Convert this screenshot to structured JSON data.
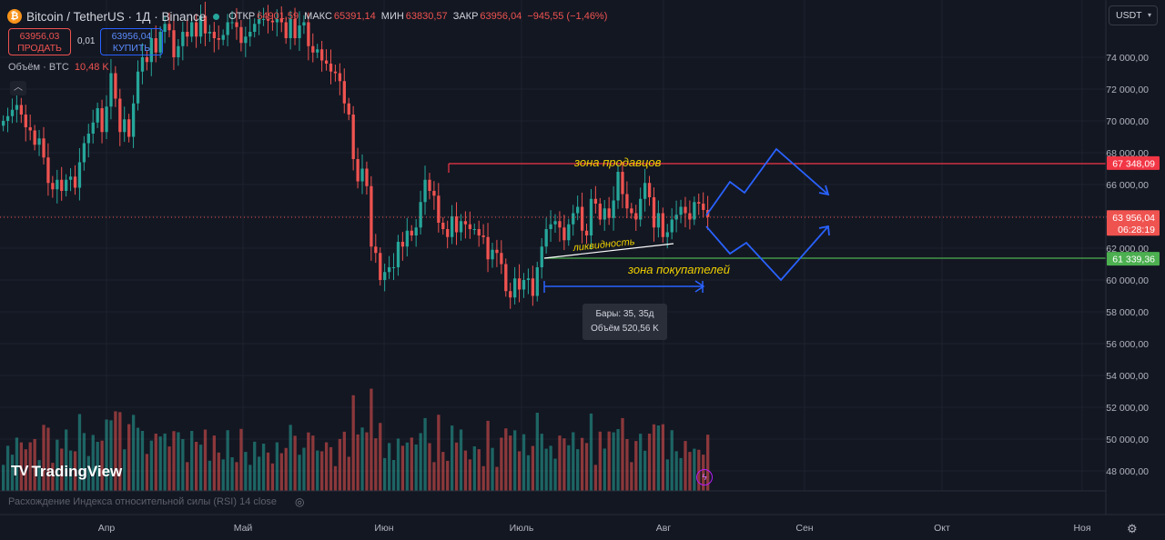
{
  "header": {
    "symbol": "Bitcoin / TetherUS · 1Д · Binance",
    "coin_glyph": "₿",
    "ohlc": [
      {
        "label": "ОТКР",
        "value": "64901,59"
      },
      {
        "label": "МАКС",
        "value": "65391,14"
      },
      {
        "label": "МИН",
        "value": "63830,57"
      },
      {
        "label": "ЗАКР",
        "value": "63956,04"
      }
    ],
    "change": "−945,55 (−1,46%)"
  },
  "trade": {
    "sell_price": "63956,03",
    "sell_label": "ПРОДАТЬ",
    "spread": "0,01",
    "buy_price": "63956,04",
    "buy_label": "КУПИТЬ"
  },
  "volume_legend": {
    "label": "Объём · BTC",
    "value": "10,48 K"
  },
  "collapse_glyph": "︿",
  "currency_selector": {
    "label": "USDT",
    "arrow": "▾"
  },
  "logo": {
    "mark": "TV",
    "text": "TradingView"
  },
  "rsi_label": "Расхождение Индекса относительной силы (RSI) 14 close",
  "eye_glyph": "◎",
  "gear_glyph": "⚙",
  "bolt_glyph": "ϟ",
  "tooltip": {
    "line1": "Бары: 35, 35д",
    "line2": "Объём 520,56 K"
  },
  "colors": {
    "up": "#26a69a",
    "down": "#ef5350",
    "drawing": "#2962ff",
    "annotation": "#f0d000",
    "resistance": "#f23645",
    "support": "#4caf50",
    "background": "#131722"
  },
  "chart_data": {
    "type": "candlestick",
    "symbol": "BTCUSDT",
    "interval": "1D",
    "ylim": [
      47000,
      76000
    ],
    "y_ticks": [
      "48000,00",
      "50000,00",
      "52000,00",
      "54000,00",
      "56000,00",
      "58000,00",
      "60000,00",
      "62000,00",
      "64000,00",
      "66000,00",
      "68000,00",
      "70000,00",
      "72000,00",
      "74000,00"
    ],
    "x_ticks": [
      "Апр",
      "Май",
      "Июн",
      "Июль",
      "Авг",
      "Сен",
      "Окт",
      "Ноя"
    ],
    "price_tags": [
      {
        "name": "resistance",
        "value": "67348,09",
        "price": 67348
      },
      {
        "name": "current",
        "value": "63956,04",
        "sub": "06:28:19",
        "price": 63956
      },
      {
        "name": "support",
        "value": "61339,36",
        "price": 61339
      }
    ],
    "annotations": {
      "sellers_zone": "зона продавцов",
      "buyers_zone": "зона покупателей",
      "liquidity": "ликвидность"
    },
    "close": [
      70000,
      70300,
      70700,
      71000,
      70400,
      69600,
      69400,
      68500,
      68900,
      67700,
      66100,
      65700,
      66300,
      65600,
      66300,
      66500,
      65800,
      67400,
      68600,
      69200,
      69900,
      70800,
      69300,
      70900,
      73000,
      71400,
      69300,
      70100,
      69000,
      71100,
      73100,
      74000,
      73700,
      75200,
      74300,
      75600,
      76100,
      75700,
      74000,
      74700,
      75600,
      75300,
      76200,
      75300,
      76600,
      75500,
      75600,
      75200,
      75100,
      75400,
      76200,
      76200,
      75900,
      74900,
      75300,
      75600,
      76100,
      76400,
      76400,
      76300,
      76200,
      76400,
      76200,
      75200,
      76400,
      75200,
      76000,
      76200,
      74700,
      74300,
      74500,
      73800,
      73600,
      73100,
      73000,
      72500,
      71100,
      70400,
      67600,
      66200,
      67000,
      65900,
      62100,
      61700,
      60000,
      60500,
      60800,
      60800,
      62400,
      62100,
      63100,
      62800,
      63300,
      64900,
      66300,
      65600,
      65300,
      63600,
      63200,
      62700,
      64000,
      63000,
      63700,
      63500,
      63200,
      63200,
      62800,
      62700,
      61300,
      61900,
      61700,
      61000,
      59300,
      58900,
      60100,
      59400,
      60000,
      60100,
      59000,
      60800,
      62100,
      63200,
      63500,
      63700,
      63300,
      62500,
      63500,
      64200,
      64600,
      63100,
      62800,
      65100,
      64800,
      63800,
      64500,
      63900,
      65000,
      66800,
      65400,
      64500,
      64200,
      63800,
      65100,
      66100,
      65200,
      63300,
      64200,
      62700,
      63000,
      63800,
      64100,
      64600,
      64200,
      63800,
      64900,
      64800,
      64400,
      63956
    ]
  }
}
